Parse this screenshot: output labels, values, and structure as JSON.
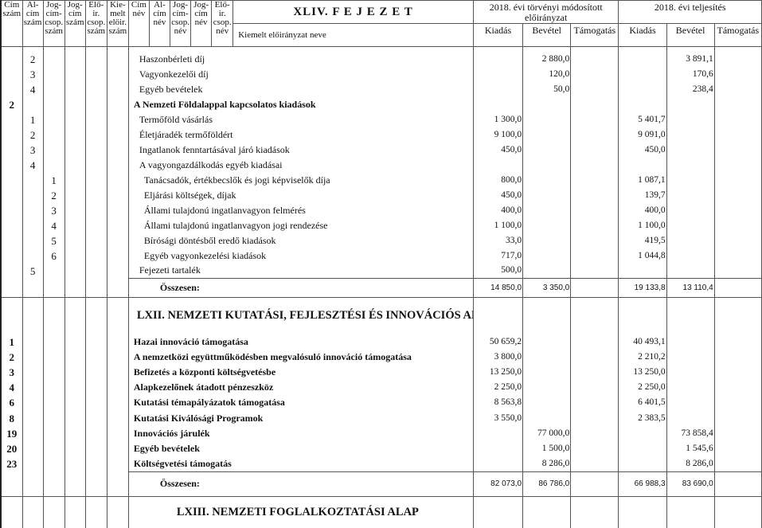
{
  "header": {
    "code_cols": [
      "Cím szám",
      "Al-cím szám",
      "Jog-cím-csop. szám",
      "Jog-cím szám",
      "Elő-ir. csop. szám",
      "Kie-melt elöir. szám"
    ],
    "name_cols": [
      "Cím név",
      "Al-cím név",
      "Jog-cím-csop. név",
      "Jog-cím név",
      "Elő-ir. csop. név"
    ],
    "chapter_title": "XLIV. F E J E Z E T",
    "name_col_label": "Kiemelt előirányzat neve",
    "group1": "2018. évi törvényi módosított előirányzat",
    "group2": "2018. évi teljesítés",
    "value_cols": [
      "Kiadás",
      "Bevétel",
      "Támogatás",
      "Kiadás",
      "Bevétel",
      "Támogatás"
    ]
  },
  "sections": [
    {
      "title": "",
      "rows": [
        {
          "codes": [
            "",
            "2",
            "",
            "",
            "",
            ""
          ],
          "name": "Haszonbérleti díj",
          "level": 1,
          "bold": false,
          "values": [
            "",
            "2 880,0",
            "",
            "",
            "3 891,1",
            ""
          ]
        },
        {
          "codes": [
            "",
            "3",
            "",
            "",
            "",
            ""
          ],
          "name": "Vagyonkezelői díj",
          "level": 1,
          "bold": false,
          "values": [
            "",
            "120,0",
            "",
            "",
            "170,6",
            ""
          ]
        },
        {
          "codes": [
            "",
            "4",
            "",
            "",
            "",
            ""
          ],
          "name": "Egyéb bevételek",
          "level": 1,
          "bold": false,
          "values": [
            "",
            "50,0",
            "",
            "",
            "238,4",
            ""
          ]
        },
        {
          "codes": [
            "2",
            "",
            "",
            "",
            "",
            ""
          ],
          "name": "A Nemzeti Földalappal kapcsolatos kiadások",
          "level": 0,
          "bold": true,
          "values": [
            "",
            "",
            "",
            "",
            "",
            ""
          ]
        },
        {
          "codes": [
            "",
            "1",
            "",
            "",
            "",
            ""
          ],
          "name": "Termőföld vásárlás",
          "level": 1,
          "bold": false,
          "values": [
            "1 300,0",
            "",
            "",
            "5 401,7",
            "",
            ""
          ]
        },
        {
          "codes": [
            "",
            "2",
            "",
            "",
            "",
            ""
          ],
          "name": "Életjáradék termőföldért",
          "level": 1,
          "bold": false,
          "values": [
            "9 100,0",
            "",
            "",
            "9 091,0",
            "",
            ""
          ]
        },
        {
          "codes": [
            "",
            "3",
            "",
            "",
            "",
            ""
          ],
          "name": "Ingatlanok fenntartásával járó kiadások",
          "level": 1,
          "bold": false,
          "values": [
            "450,0",
            "",
            "",
            "450,0",
            "",
            ""
          ]
        },
        {
          "codes": [
            "",
            "4",
            "",
            "",
            "",
            ""
          ],
          "name": "A vagyongazdálkodás egyéb kiadásai",
          "level": 1,
          "bold": false,
          "values": [
            "",
            "",
            "",
            "",
            "",
            ""
          ]
        },
        {
          "codes": [
            "",
            "",
            "1",
            "",
            "",
            ""
          ],
          "name": "Tanácsadók, értékbecslők és jogi képviselők díja",
          "level": 2,
          "bold": false,
          "values": [
            "800,0",
            "",
            "",
            "1 087,1",
            "",
            ""
          ]
        },
        {
          "codes": [
            "",
            "",
            "2",
            "",
            "",
            ""
          ],
          "name": "Eljárási költségek, díjak",
          "level": 2,
          "bold": false,
          "values": [
            "450,0",
            "",
            "",
            "139,7",
            "",
            ""
          ]
        },
        {
          "codes": [
            "",
            "",
            "3",
            "",
            "",
            ""
          ],
          "name": "Állami tulajdonú ingatlanvagyon felmérés",
          "level": 2,
          "bold": false,
          "values": [
            "400,0",
            "",
            "",
            "400,0",
            "",
            ""
          ]
        },
        {
          "codes": [
            "",
            "",
            "4",
            "",
            "",
            ""
          ],
          "name": "Állami tulajdonú ingatlanvagyon jogi rendezése",
          "level": 2,
          "bold": false,
          "values": [
            "1 100,0",
            "",
            "",
            "1 100,0",
            "",
            ""
          ]
        },
        {
          "codes": [
            "",
            "",
            "5",
            "",
            "",
            ""
          ],
          "name": "Bírósági döntésből eredő kiadások",
          "level": 2,
          "bold": false,
          "values": [
            "33,0",
            "",
            "",
            "419,5",
            "",
            ""
          ]
        },
        {
          "codes": [
            "",
            "",
            "6",
            "",
            "",
            ""
          ],
          "name": "Egyéb vagyonkezelési kiadások",
          "level": 2,
          "bold": false,
          "values": [
            "717,0",
            "",
            "",
            "1 044,8",
            "",
            ""
          ]
        },
        {
          "codes": [
            "",
            "5",
            "",
            "",
            "",
            ""
          ],
          "name": "Fejezeti tartalék",
          "level": 1,
          "bold": false,
          "values": [
            "500,0",
            "",
            "",
            "",
            "",
            ""
          ]
        }
      ],
      "total": {
        "label": "Összesen:",
        "values": [
          "14 850,0",
          "3 350,0",
          "",
          "19 133,8",
          "13 110,4",
          ""
        ]
      }
    },
    {
      "title": "LXII. NEMZETI KUTATÁSI, FEJLESZTÉSI ÉS INNOVÁCIÓS ALAP",
      "rows": [
        {
          "codes": [
            "1",
            "",
            "",
            "",
            "",
            ""
          ],
          "name": "Hazai innováció támogatása",
          "level": 0,
          "bold": true,
          "values": [
            "50 659,2",
            "",
            "",
            "40 493,1",
            "",
            ""
          ]
        },
        {
          "codes": [
            "2",
            "",
            "",
            "",
            "",
            ""
          ],
          "name": "A nemzetközi együttműködésben megvalósuló innováció támogatása",
          "level": 0,
          "bold": true,
          "values": [
            "3 800,0",
            "",
            "",
            "2 210,2",
            "",
            ""
          ]
        },
        {
          "codes": [
            "3",
            "",
            "",
            "",
            "",
            ""
          ],
          "name": "Befizetés a központi költségvetésbe",
          "level": 0,
          "bold": true,
          "values": [
            "13 250,0",
            "",
            "",
            "13 250,0",
            "",
            ""
          ]
        },
        {
          "codes": [
            "4",
            "",
            "",
            "",
            "",
            ""
          ],
          "name": "Alapkezelőnek átadott pénzeszköz",
          "level": 0,
          "bold": true,
          "values": [
            "2 250,0",
            "",
            "",
            "2 250,0",
            "",
            ""
          ]
        },
        {
          "codes": [
            "6",
            "",
            "",
            "",
            "",
            ""
          ],
          "name": "Kutatási témapályázatok támogatása",
          "level": 0,
          "bold": true,
          "values": [
            "8 563,8",
            "",
            "",
            "6 401,5",
            "",
            ""
          ]
        },
        {
          "codes": [
            "8",
            "",
            "",
            "",
            "",
            ""
          ],
          "name": "Kutatási Kiválósági Programok",
          "level": 0,
          "bold": true,
          "values": [
            "3 550,0",
            "",
            "",
            "2 383,5",
            "",
            ""
          ]
        },
        {
          "codes": [
            "19",
            "",
            "",
            "",
            "",
            ""
          ],
          "name": "Innovációs járulék",
          "level": 0,
          "bold": true,
          "values": [
            "",
            "77 000,0",
            "",
            "",
            "73 858,4",
            ""
          ]
        },
        {
          "codes": [
            "20",
            "",
            "",
            "",
            "",
            ""
          ],
          "name": "Egyéb bevételek",
          "level": 0,
          "bold": true,
          "values": [
            "",
            "1 500,0",
            "",
            "",
            "1 545,6",
            ""
          ]
        },
        {
          "codes": [
            "23",
            "",
            "",
            "",
            "",
            ""
          ],
          "name": "Költségvetési támogatás",
          "level": 0,
          "bold": true,
          "values": [
            "",
            "8 286,0",
            "",
            "",
            "8 286,0",
            ""
          ]
        }
      ],
      "total": {
        "label": "Összesen:",
        "values": [
          "82 073,0",
          "86 786,0",
          "",
          "66 988,3",
          "83 690,0",
          ""
        ]
      }
    },
    {
      "title": "LXIII. NEMZETI FOGLALKOZTATÁSI ALAP",
      "rows": []
    }
  ]
}
